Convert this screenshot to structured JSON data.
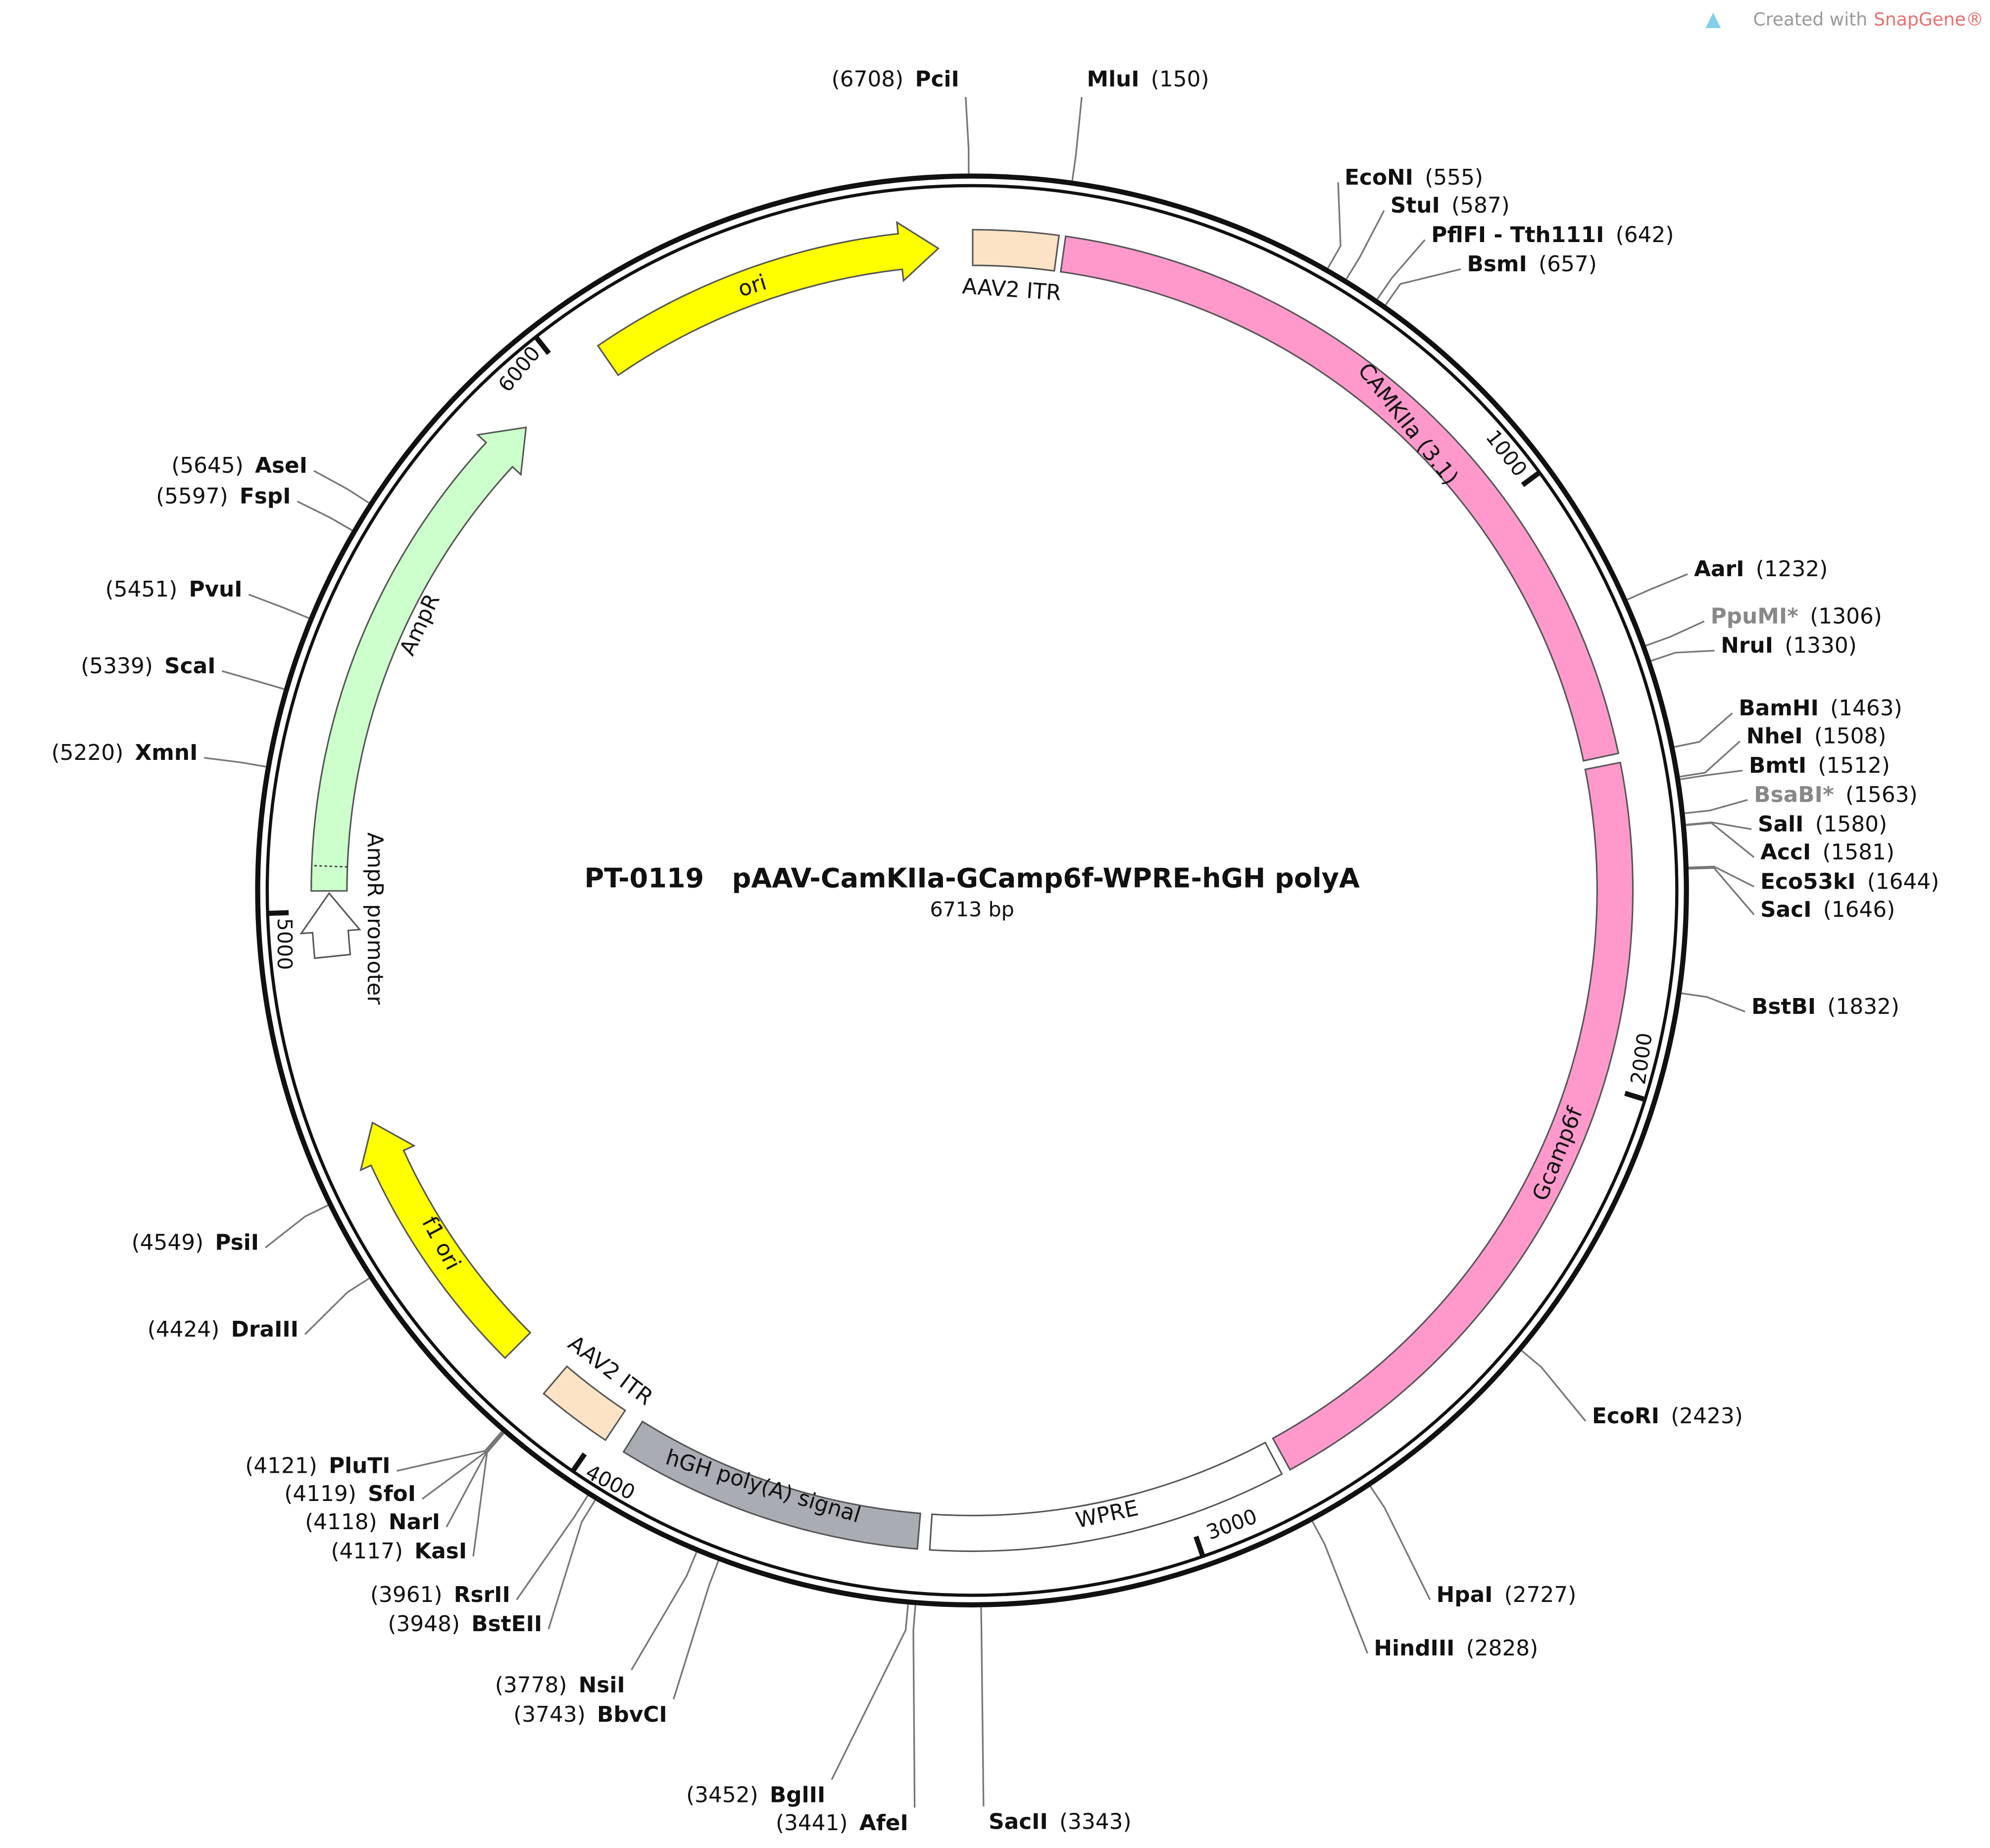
{
  "logo": {
    "prefix": "Created with",
    "brand": "SnapGene®"
  },
  "map": {
    "title": "PT-0119   pAAV-CamKIIa-GCamp6f-WPRE-hGH polyA",
    "length": "6713 bp",
    "ticks": [
      "1000",
      "2000",
      "3000",
      "4000",
      "5000",
      "6000"
    ],
    "features": [
      {
        "label": "AAV2 ITR"
      },
      {
        "label": "CAMKIIa (3.1)"
      },
      {
        "label": "Gcamp6f"
      },
      {
        "label": "WPRE"
      },
      {
        "label": "hGH poly(A) signal"
      },
      {
        "label": "AAV2 ITR"
      },
      {
        "label": "f1 ori"
      },
      {
        "label": "AmpR promoter"
      },
      {
        "label": "AmpR"
      },
      {
        "label": "ori"
      }
    ],
    "enzymes": [
      {
        "name": "PciI",
        "position": "(6708)"
      },
      {
        "name": "MluI",
        "position": "(150)"
      },
      {
        "name": "EcoNI",
        "position": "(555)"
      },
      {
        "name": "StuI",
        "position": "(587)"
      },
      {
        "name": "PflFI - Tth111I",
        "position": "(642)"
      },
      {
        "name": "BsmI",
        "position": "(657)"
      },
      {
        "name": "AarI",
        "position": "(1232)"
      },
      {
        "name": "PpuMI*",
        "position": "(1306)"
      },
      {
        "name": "NruI",
        "position": "(1330)"
      },
      {
        "name": "BamHI",
        "position": "(1463)"
      },
      {
        "name": "NheI",
        "position": "(1508)"
      },
      {
        "name": "BmtI",
        "position": "(1512)"
      },
      {
        "name": "BsaBI*",
        "position": "(1563)"
      },
      {
        "name": "SalI",
        "position": "(1580)"
      },
      {
        "name": "AccI",
        "position": "(1581)"
      },
      {
        "name": "Eco53kI",
        "position": "(1644)"
      },
      {
        "name": "SacI",
        "position": "(1646)"
      },
      {
        "name": "BstBI",
        "position": "(1832)"
      },
      {
        "name": "EcoRI",
        "position": "(2423)"
      },
      {
        "name": "HpaI",
        "position": "(2727)"
      },
      {
        "name": "HindIII",
        "position": "(2828)"
      },
      {
        "name": "SacII",
        "position": "(3343)"
      },
      {
        "name": "AfeI",
        "position": "(3441)"
      },
      {
        "name": "BglII",
        "position": "(3452)"
      },
      {
        "name": "BbvCI",
        "position": "(3743)"
      },
      {
        "name": "NsiI",
        "position": "(3778)"
      },
      {
        "name": "BstEII",
        "position": "(3948)"
      },
      {
        "name": "RsrII",
        "position": "(3961)"
      },
      {
        "name": "KasI",
        "position": "(4117)"
      },
      {
        "name": "NarI",
        "position": "(4118)"
      },
      {
        "name": "SfoI",
        "position": "(4119)"
      },
      {
        "name": "PluTI",
        "position": "(4121)"
      },
      {
        "name": "DraIII",
        "position": "(4424)"
      },
      {
        "name": "PsiI",
        "position": "(4549)"
      },
      {
        "name": "XmnI",
        "position": "(5220)"
      },
      {
        "name": "ScaI",
        "position": "(5339)"
      },
      {
        "name": "PvuI",
        "position": "(5451)"
      },
      {
        "name": "FspI",
        "position": "(5597)"
      },
      {
        "name": "AseI",
        "position": "(5645)"
      }
    ]
  }
}
